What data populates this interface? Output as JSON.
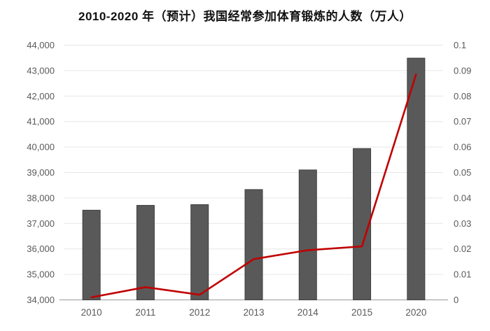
{
  "chart_data": {
    "type": "combo",
    "title": "2010-2020 年（预计）我国经常参加体育锻炼的人数（万人）",
    "categories": [
      "2010",
      "2011",
      "2012",
      "2013",
      "2014",
      "2015",
      "2020"
    ],
    "series": [
      {
        "id": "participants-bars",
        "type": "bar",
        "axis": "left",
        "values": [
          37520,
          37710,
          37740,
          38330,
          39100,
          39940,
          43490
        ]
      },
      {
        "id": "growth-rate-line",
        "type": "line",
        "axis": "right",
        "values": [
          0.001,
          0.005,
          0.002,
          0.016,
          0.0195,
          0.021,
          0.0885
        ]
      }
    ],
    "left_axis": {
      "min": 34000,
      "max": 44000,
      "step": 1000,
      "tick_labels_top_to_bottom": [
        "44,000",
        "43,000",
        "42,000",
        "41,000",
        "40,000",
        "39,000",
        "38,000",
        "37,000",
        "36,000",
        "35,000",
        "34,000"
      ]
    },
    "right_axis": {
      "min": 0,
      "max": 0.1,
      "step": 0.01,
      "tick_labels_top_to_bottom": [
        "0.1",
        "0.09",
        "0.08",
        "0.07",
        "0.06",
        "0.05",
        "0.04",
        "0.03",
        "0.02",
        "0.01",
        "0"
      ]
    },
    "grid": true,
    "legend": "none"
  },
  "colors": {
    "bar": "#595959",
    "bar_border": "#3f3f3f",
    "line": "#c00000",
    "grid": "#e6e6e6",
    "axis_line": "#ababab",
    "tick_text": "#595959",
    "title_text": "#111111",
    "background": "#ffffff"
  }
}
